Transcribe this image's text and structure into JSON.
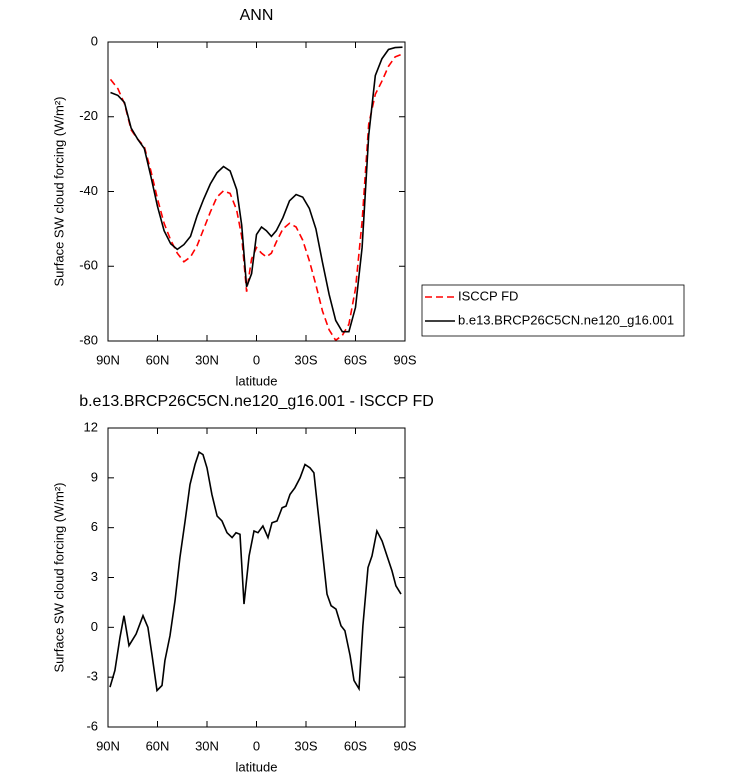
{
  "chart_data": [
    {
      "type": "line",
      "title": "ANN",
      "xlabel": "latitude",
      "ylabel": "Surface SW cloud forcing (W/m²)",
      "x": [
        88.5,
        84,
        80,
        76,
        72,
        68,
        64,
        60,
        56,
        52,
        48,
        44,
        40,
        36,
        32,
        28,
        24,
        20,
        16,
        12,
        9,
        6,
        3,
        0,
        -3,
        -6,
        -9,
        -12,
        -16,
        -20,
        -24,
        -28,
        -32,
        -36,
        -40,
        -44,
        -48,
        -52,
        -56,
        -60,
        -64,
        -68,
        -72,
        -76,
        -80,
        -84,
        -88.5
      ],
      "series": [
        {
          "name": "ISCCP FD",
          "color": "#ff0000",
          "style": "dashed",
          "values": [
            -10,
            -12.5,
            -16.5,
            -23.5,
            -26,
            -28,
            -34.5,
            -42,
            -48.5,
            -53,
            -56.5,
            -58.8,
            -57.5,
            -54.5,
            -50,
            -45.5,
            -41.5,
            -39.8,
            -40.5,
            -45,
            -52,
            -66.8,
            -58,
            -55,
            -56.5,
            -57.5,
            -56.5,
            -53.5,
            -50,
            -48.5,
            -49.5,
            -53,
            -58.5,
            -65,
            -72,
            -77,
            -79.8,
            -78.5,
            -75.5,
            -66,
            -48,
            -22,
            -14,
            -10.5,
            -6.5,
            -4,
            -3.2
          ]
        },
        {
          "name": "b.e13.BRCP26C5CN.ne120_g16.001",
          "color": "#000000",
          "style": "solid",
          "values": [
            -13.5,
            -14.3,
            -16.2,
            -23,
            -26,
            -28.5,
            -36,
            -44,
            -50.5,
            -54,
            -55.5,
            -54.2,
            -52,
            -46.5,
            -42,
            -38,
            -35,
            -33.3,
            -34.5,
            -39.5,
            -49,
            -65.5,
            -62,
            -51.5,
            -49.5,
            -50.5,
            -52,
            -50.5,
            -47,
            -42.5,
            -40.8,
            -41.5,
            -44.5,
            -50,
            -59,
            -67.5,
            -74.5,
            -77.5,
            -77.5,
            -71,
            -55,
            -25,
            -9,
            -4.5,
            -2,
            -1.5,
            -1.4
          ]
        }
      ],
      "xlim": [
        90,
        -90
      ],
      "xticks": [
        {
          "value": 90,
          "label": "90N"
        },
        {
          "value": 60,
          "label": "60N"
        },
        {
          "value": 30,
          "label": "30N"
        },
        0,
        {
          "value": -30,
          "label": "30S"
        },
        {
          "value": -60,
          "label": "60S"
        },
        {
          "value": -90,
          "label": "90S"
        }
      ],
      "ylim": [
        -80,
        0
      ],
      "yticks": [
        0,
        -20,
        -40,
        -60,
        -80
      ],
      "legend": "right"
    },
    {
      "type": "line",
      "title": "b.e13.BRCP26C5CN.ne120_g16.001 - ISCCP FD",
      "xlabel": "latitude",
      "ylabel": "Surface SW cloud forcing (W/m²)",
      "x": [
        88.8,
        85.8,
        82.7,
        80.3,
        77.3,
        73,
        68.8,
        65.8,
        63.3,
        60.3,
        57.3,
        55.5,
        52.4,
        49.4,
        46.4,
        43.3,
        40.3,
        37.3,
        34.8,
        32.4,
        30,
        27,
        23.9,
        20.9,
        17.9,
        14.8,
        12.4,
        10,
        7.6,
        4.5,
        1.5,
        -0.9,
        -3.9,
        -7,
        -9.4,
        -12.4,
        -15.5,
        -17.9,
        -20.3,
        -23.3,
        -26.4,
        -29.4,
        -32.4,
        -34.8,
        -37.3,
        -39.7,
        -42.7,
        -45.2,
        -48.2,
        -51.2,
        -53.6,
        -56.7,
        -59.1,
        -62.1,
        -64.5,
        -67.6,
        -70,
        -73,
        -76.1,
        -79.1,
        -82.1,
        -84.5,
        -87.6
      ],
      "series": [
        {
          "color": "#000000",
          "style": "solid",
          "values": [
            -3.6,
            -2.6,
            -0.6,
            0.7,
            -1.1,
            -0.4,
            0.7,
            0,
            -1.7,
            -3.8,
            -3.5,
            -2,
            -0.5,
            1.6,
            4.2,
            6.4,
            8.6,
            9.8,
            10.55,
            10.4,
            9.6,
            8,
            6.7,
            6.4,
            5.7,
            5.4,
            5.7,
            5.6,
            1.4,
            4.3,
            5.8,
            5.7,
            6.1,
            5.4,
            6.3,
            6.4,
            7.2,
            7.3,
            8,
            8.4,
            9,
            9.8,
            9.6,
            9.3,
            7,
            4.8,
            2,
            1.3,
            1.1,
            0.1,
            -0.2,
            -1.7,
            -3.2,
            -3.7,
            0.1,
            3.6,
            4.3,
            5.8,
            5.2,
            4.3,
            3.4,
            2.5,
            2
          ]
        }
      ],
      "xlim": [
        90,
        -90
      ],
      "xticks": [
        {
          "value": 90,
          "label": "90N"
        },
        {
          "value": 60,
          "label": "60N"
        },
        {
          "value": 30,
          "label": "30N"
        },
        0,
        {
          "value": -30,
          "label": "30S"
        },
        {
          "value": -60,
          "label": "60S"
        },
        {
          "value": -90,
          "label": "90S"
        }
      ],
      "ylim": [
        -6,
        12
      ],
      "yticks": [
        12,
        9,
        6,
        3,
        0,
        -3,
        -6
      ]
    }
  ]
}
